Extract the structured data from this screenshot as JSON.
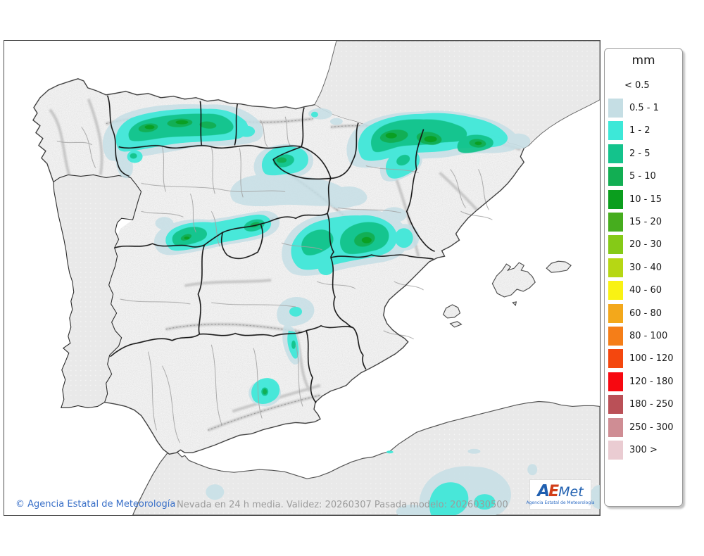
{
  "map": {
    "caption": "Nevada en 24 h media. Validez: 20260307 Pasada modelo: 2026030500",
    "copyright": "© Agencia Estatal de Meteorología",
    "colors": {
      "sea": "#ffffff",
      "spain": "#f3f3f3",
      "foreign": "#e9e9e9",
      "foreign_dot": "#f7f7f7",
      "coast": "#333333",
      "region_border": "#161616",
      "province_border": "#a3a3a3",
      "relief_ridge": "#8f8f8f"
    },
    "snow": {
      "l_05_1": "#c6dfe6",
      "l_1_2": "#3de8d8",
      "l_2_5": "#14c38c",
      "l_5_10": "#12ae53",
      "l_10_15": "#0b9e1e"
    }
  },
  "legend": {
    "title": "mm",
    "items": [
      {
        "label": "< 0.5",
        "color": null
      },
      {
        "label": "0.5 - 1",
        "color": "#c5dee4"
      },
      {
        "label": "1 - 2",
        "color": "#3de8d8"
      },
      {
        "label": "2 - 5",
        "color": "#14c38c"
      },
      {
        "label": "5 - 10",
        "color": "#12ae53"
      },
      {
        "label": "10 - 15",
        "color": "#0b9e1e"
      },
      {
        "label": "15 - 20",
        "color": "#46ad1e"
      },
      {
        "label": "20 - 30",
        "color": "#85ca17"
      },
      {
        "label": "30 - 40",
        "color": "#b6d714"
      },
      {
        "label": "40 - 60",
        "color": "#f9f214"
      },
      {
        "label": "60 - 80",
        "color": "#f3a81b"
      },
      {
        "label": "80 - 100",
        "color": "#f57e18"
      },
      {
        "label": "100 - 120",
        "color": "#f4470e"
      },
      {
        "label": "120 - 180",
        "color": "#f70810"
      },
      {
        "label": "180 - 250",
        "color": "#ba5057"
      },
      {
        "label": "250 - 300",
        "color": "#cf8d94"
      },
      {
        "label": "300 >",
        "color": "#eaccd2"
      }
    ]
  },
  "logo": {
    "a": "A",
    "e": "E",
    "met": "Met",
    "subtitle": "Agencia Estatal de Meteorología"
  }
}
